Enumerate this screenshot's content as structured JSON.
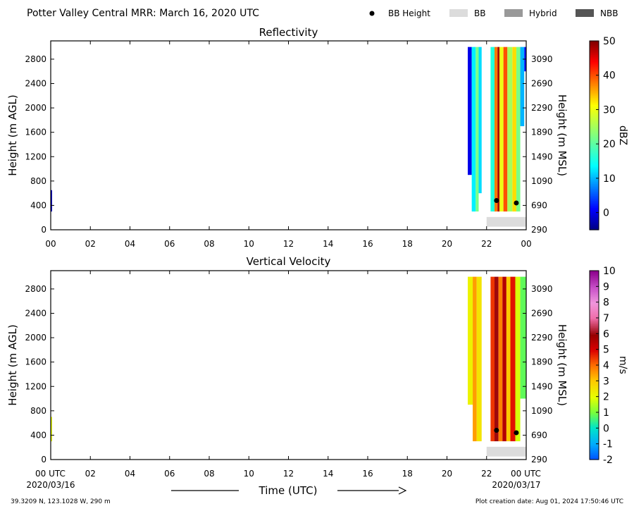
{
  "header": {
    "title": "Potter Valley Central MRR:  March 16, 2020 UTC",
    "legend": {
      "bb_height": "BB Height",
      "bb": "BB",
      "hybrid": "Hybrid",
      "nbb": "NBB"
    }
  },
  "axes_text": {
    "left_label": "Height (m AGL)",
    "right_label": "Height (m MSL)",
    "x_label": "Time (UTC)",
    "start_date": "2020/03/16",
    "end_date": "2020/03/17",
    "first_tick_utc": "00 UTC",
    "last_tick_utc": "00 UTC"
  },
  "footer": {
    "location": "39.3209 N, 123.1028 W, 290 m",
    "creation": "Plot creation date: Aug 01, 2024 17:50:46 UTC"
  },
  "colors": {
    "bb_band": "#dcdcdc",
    "hybrid": "#999999",
    "nbb": "#555555",
    "bb_marker": "#000000"
  },
  "chart_data": [
    {
      "type": "heatmap",
      "title": "Reflectivity",
      "units": "dBZ",
      "x_ticks": [
        "00",
        "02",
        "04",
        "06",
        "08",
        "10",
        "12",
        "14",
        "16",
        "18",
        "20",
        "22",
        "00"
      ],
      "xlim": [
        0,
        24
      ],
      "y_ticks": [
        0,
        400,
        800,
        1200,
        1600,
        2000,
        2400,
        2800
      ],
      "ylim": [
        0,
        3100
      ],
      "y2_ticks": [
        290,
        690,
        1090,
        1490,
        1890,
        2290,
        2690,
        3090
      ],
      "colorbar": {
        "range": [
          -5,
          50
        ],
        "ticks": [
          0,
          10,
          20,
          30,
          40,
          50
        ]
      },
      "data_regions": [
        {
          "t_start": 0.0,
          "t_end": 0.07,
          "h_start": 300,
          "h_end": 650,
          "value": -2
        },
        {
          "t_start": 21.05,
          "t_end": 21.25,
          "h_start": 900,
          "h_end": 3000,
          "value": 0
        },
        {
          "t_start": 21.25,
          "t_end": 21.45,
          "h_start": 300,
          "h_end": 3000,
          "value": 13
        },
        {
          "t_start": 21.45,
          "t_end": 21.6,
          "h_start": 300,
          "h_end": 3000,
          "value": 22
        },
        {
          "t_start": 21.6,
          "t_end": 21.75,
          "h_start": 600,
          "h_end": 3000,
          "value": 12
        },
        {
          "t_start": 22.2,
          "t_end": 22.4,
          "h_start": 300,
          "h_end": 3000,
          "value": 16
        },
        {
          "t_start": 22.4,
          "t_end": 22.55,
          "h_start": 300,
          "h_end": 3000,
          "value": 38
        },
        {
          "t_start": 22.55,
          "t_end": 22.65,
          "h_start": 300,
          "h_end": 3000,
          "value": 48
        },
        {
          "t_start": 22.65,
          "t_end": 22.85,
          "h_start": 300,
          "h_end": 3000,
          "value": 30
        },
        {
          "t_start": 22.85,
          "t_end": 23.05,
          "h_start": 300,
          "h_end": 3000,
          "value": 40
        },
        {
          "t_start": 23.05,
          "t_end": 23.3,
          "h_start": 300,
          "h_end": 3000,
          "value": 25
        },
        {
          "t_start": 23.3,
          "t_end": 23.5,
          "h_start": 300,
          "h_end": 3000,
          "value": 33
        },
        {
          "t_start": 23.5,
          "t_end": 23.7,
          "h_start": 300,
          "h_end": 3000,
          "value": 22
        },
        {
          "t_start": 23.7,
          "t_end": 23.9,
          "h_start": 1700,
          "h_end": 3000,
          "value": 10
        },
        {
          "t_start": 23.9,
          "t_end": 24.0,
          "h_start": 2600,
          "h_end": 3000,
          "value": 2
        }
      ],
      "bb_band": {
        "t_start": 22.0,
        "t_end": 24.0,
        "h_start": 50,
        "h_end": 210
      },
      "bb_points": [
        {
          "t": 22.5,
          "h": 480
        },
        {
          "t": 23.5,
          "h": 440
        }
      ]
    },
    {
      "type": "heatmap",
      "title": "Vertical Velocity",
      "units": "m/s",
      "x_ticks": [
        "00",
        "02",
        "04",
        "06",
        "08",
        "10",
        "12",
        "14",
        "16",
        "18",
        "20",
        "22",
        "00"
      ],
      "xlim": [
        0,
        24
      ],
      "y_ticks": [
        0,
        400,
        800,
        1200,
        1600,
        2000,
        2400,
        2800
      ],
      "ylim": [
        0,
        3100
      ],
      "y2_ticks": [
        290,
        690,
        1090,
        1490,
        1890,
        2290,
        2690,
        3090
      ],
      "colorbar": {
        "range": [
          -2,
          10
        ],
        "ticks": [
          -2,
          -1,
          0,
          1,
          2,
          3,
          4,
          5,
          6,
          7,
          8,
          9,
          10
        ]
      },
      "data_regions": [
        {
          "t_start": 0.0,
          "t_end": 0.07,
          "h_start": 300,
          "h_end": 700,
          "value": 2
        },
        {
          "t_start": 21.05,
          "t_end": 21.3,
          "h_start": 900,
          "h_end": 3000,
          "value": 2.2
        },
        {
          "t_start": 21.3,
          "t_end": 21.5,
          "h_start": 300,
          "h_end": 3000,
          "value": 3.5
        },
        {
          "t_start": 21.5,
          "t_end": 21.75,
          "h_start": 300,
          "h_end": 3000,
          "value": 2.5
        },
        {
          "t_start": 22.2,
          "t_end": 22.4,
          "h_start": 300,
          "h_end": 3000,
          "value": 4.5
        },
        {
          "t_start": 22.4,
          "t_end": 22.6,
          "h_start": 300,
          "h_end": 3000,
          "value": 6
        },
        {
          "t_start": 22.6,
          "t_end": 22.8,
          "h_start": 300,
          "h_end": 3000,
          "value": 3.8
        },
        {
          "t_start": 22.8,
          "t_end": 23.0,
          "h_start": 300,
          "h_end": 3000,
          "value": 5.5
        },
        {
          "t_start": 23.0,
          "t_end": 23.2,
          "h_start": 300,
          "h_end": 3000,
          "value": 3
        },
        {
          "t_start": 23.2,
          "t_end": 23.45,
          "h_start": 300,
          "h_end": 3000,
          "value": 4.8
        },
        {
          "t_start": 23.45,
          "t_end": 23.7,
          "h_start": 300,
          "h_end": 3000,
          "value": 1.8
        },
        {
          "t_start": 23.7,
          "t_end": 24.0,
          "h_start": 1000,
          "h_end": 3000,
          "value": 0.8
        }
      ],
      "bb_band": {
        "t_start": 22.0,
        "t_end": 24.0,
        "h_start": 50,
        "h_end": 210
      },
      "bb_points": [
        {
          "t": 22.5,
          "h": 480
        },
        {
          "t": 23.5,
          "h": 440
        }
      ]
    }
  ]
}
